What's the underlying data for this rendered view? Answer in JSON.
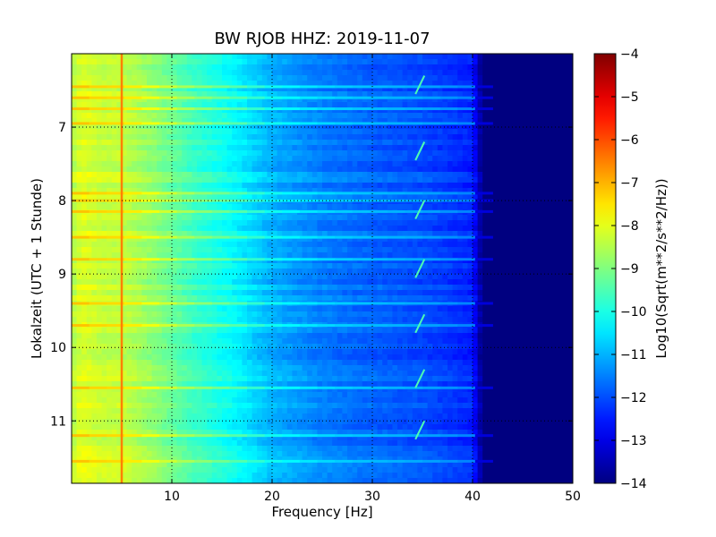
{
  "chart_data": {
    "type": "heatmap",
    "title": "BW RJOB HHZ: 2019-11-07",
    "xlabel": "Frequency [Hz]",
    "ylabel": "Lokalzeit (UTC + 1 Stunde)",
    "xlim": [
      0,
      50
    ],
    "ylim": [
      6.0,
      11.85
    ],
    "y_inverted": true,
    "x_ticks": [
      10,
      20,
      30,
      40,
      50
    ],
    "x_tick_labels": [
      "10",
      "20",
      "30",
      "40",
      "50"
    ],
    "y_ticks": [
      7,
      8,
      9,
      10,
      11
    ],
    "y_tick_labels": [
      "7",
      "8",
      "9",
      "10",
      "11"
    ],
    "grid": true,
    "colormap": "jet",
    "colorbar": {
      "label": "Log10(Sqrt(m**2/s**2/Hz))",
      "range": [
        -14,
        -4
      ],
      "ticks": [
        -4,
        -5,
        -6,
        -7,
        -8,
        -9,
        -10,
        -11,
        -12,
        -13,
        -14
      ],
      "tick_labels": [
        "−4",
        "−5",
        "−6",
        "−7",
        "−8",
        "−9",
        "−10",
        "−11",
        "−12",
        "−13",
        "−14"
      ]
    },
    "spectrum_profile": {
      "frequency_hz": [
        0,
        1,
        3,
        5,
        8,
        12,
        16,
        20,
        25,
        30,
        35,
        40,
        41,
        50
      ],
      "log10_amplitude": [
        -8.5,
        -8.0,
        -8.3,
        -8.3,
        -8.8,
        -9.6,
        -10.2,
        -11.0,
        -11.5,
        -11.8,
        -12.0,
        -12.4,
        -14.0,
        -14.0
      ]
    },
    "spectral_line": {
      "frequency_hz": 5.0,
      "log10_amplitude": -6.5
    },
    "bright_bands_hours": [
      6.45,
      6.6,
      6.75,
      6.95,
      7.9,
      8.0,
      8.15,
      8.5,
      8.8,
      9.4,
      9.7,
      10.55,
      11.2,
      11.55
    ],
    "bright_band_extent_hz": 42,
    "tracks": {
      "start_hours": [
        6.3,
        7.2,
        8.0,
        8.8,
        9.55,
        10.3,
        11.0
      ],
      "frequency_start_hz": 34.3,
      "frequency_end_hz": 35.2,
      "duration_hours": 0.25
    }
  },
  "colors": {
    "background": "#ffffff",
    "axis": "#000000",
    "grid": "#000000"
  }
}
